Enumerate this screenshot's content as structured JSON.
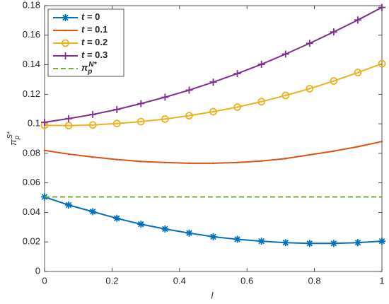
{
  "chart_data": {
    "type": "line",
    "x": [
      0,
      0.0714,
      0.1429,
      0.2143,
      0.2857,
      0.3571,
      0.4286,
      0.5,
      0.5714,
      0.6429,
      0.7143,
      0.7857,
      0.8571,
      0.9286,
      1
    ],
    "series": [
      {
        "name": "t = 0",
        "color": "#0072BD",
        "marker": "asterisk",
        "values": [
          0.0505,
          0.045,
          0.0405,
          0.036,
          0.032,
          0.0288,
          0.026,
          0.0235,
          0.0218,
          0.0205,
          0.0195,
          0.019,
          0.019,
          0.0195,
          0.0205
        ]
      },
      {
        "name": "t = 0.1",
        "color": "#D95319",
        "marker": "dot",
        "values": [
          0.082,
          0.0795,
          0.0775,
          0.0758,
          0.0745,
          0.0738,
          0.0733,
          0.0733,
          0.0738,
          0.0748,
          0.0765,
          0.079,
          0.0815,
          0.0845,
          0.088
        ]
      },
      {
        "name": "t = 0.2",
        "color": "#EDB120",
        "marker": "circle",
        "values": [
          0.099,
          0.0988,
          0.0992,
          0.1002,
          0.1015,
          0.1032,
          0.1055,
          0.1082,
          0.1113,
          0.115,
          0.1192,
          0.1238,
          0.129,
          0.1347,
          0.1407
        ]
      },
      {
        "name": "t = 0.3",
        "color": "#7E2F8E",
        "marker": "plus",
        "values": [
          0.101,
          0.1035,
          0.1063,
          0.1097,
          0.1137,
          0.118,
          0.1228,
          0.1282,
          0.134,
          0.1403,
          0.1472,
          0.1545,
          0.1622,
          0.1703,
          0.1788
        ]
      },
      {
        "name": "πpN*",
        "color": "#77AC30",
        "dashed": true,
        "values": [
          0.0505,
          0.0505,
          0.0505,
          0.0505,
          0.0505,
          0.0505,
          0.0505,
          0.0505,
          0.0505,
          0.0505,
          0.0505,
          0.0505,
          0.0505,
          0.0505,
          0.0505
        ]
      }
    ],
    "xlabel": "l",
    "ylabel": "πpS*",
    "xlim": [
      0,
      1
    ],
    "xticks": [
      0,
      0.2,
      0.4,
      0.6,
      0.8,
      1
    ],
    "ylim": [
      0,
      0.18
    ],
    "yticks": [
      0,
      0.02,
      0.04,
      0.06,
      0.08,
      0.1,
      0.12,
      0.14,
      0.16,
      0.18
    ],
    "legend": "top-left",
    "grid": false
  }
}
